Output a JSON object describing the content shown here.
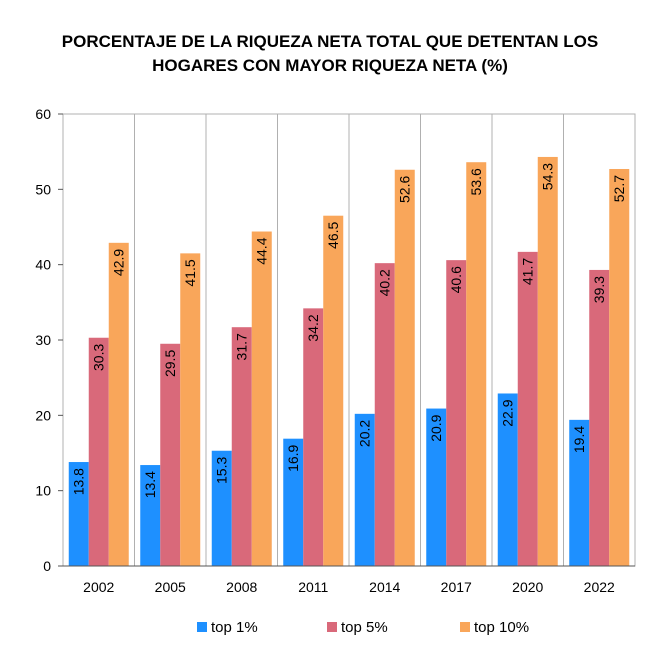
{
  "chart_data": {
    "type": "bar",
    "title_line1": "PORCENTAJE DE LA RIQUEZA NETA TOTAL QUE DETENTAN LOS",
    "title_line2": "HOGARES CON MAYOR RIQUEZA NETA (%)",
    "categories": [
      "2002",
      "2005",
      "2008",
      "2011",
      "2014",
      "2017",
      "2020",
      "2022"
    ],
    "series": [
      {
        "name": "top 1%",
        "color": "#1e90ff",
        "values": [
          13.8,
          13.4,
          15.3,
          16.9,
          20.2,
          20.9,
          22.9,
          19.4
        ]
      },
      {
        "name": "top 5%",
        "color": "#d9697a",
        "values": [
          30.3,
          29.5,
          31.7,
          34.2,
          40.2,
          40.6,
          41.7,
          39.3
        ]
      },
      {
        "name": "top 10%",
        "color": "#f9a65a",
        "values": [
          42.9,
          41.5,
          44.4,
          46.5,
          52.6,
          53.6,
          54.3,
          52.7
        ]
      }
    ],
    "ylim": [
      0,
      60
    ],
    "yticks": [
      0,
      10,
      20,
      30,
      40,
      50,
      60
    ],
    "grid": "vertical separators between categories",
    "legend": "bottom"
  }
}
